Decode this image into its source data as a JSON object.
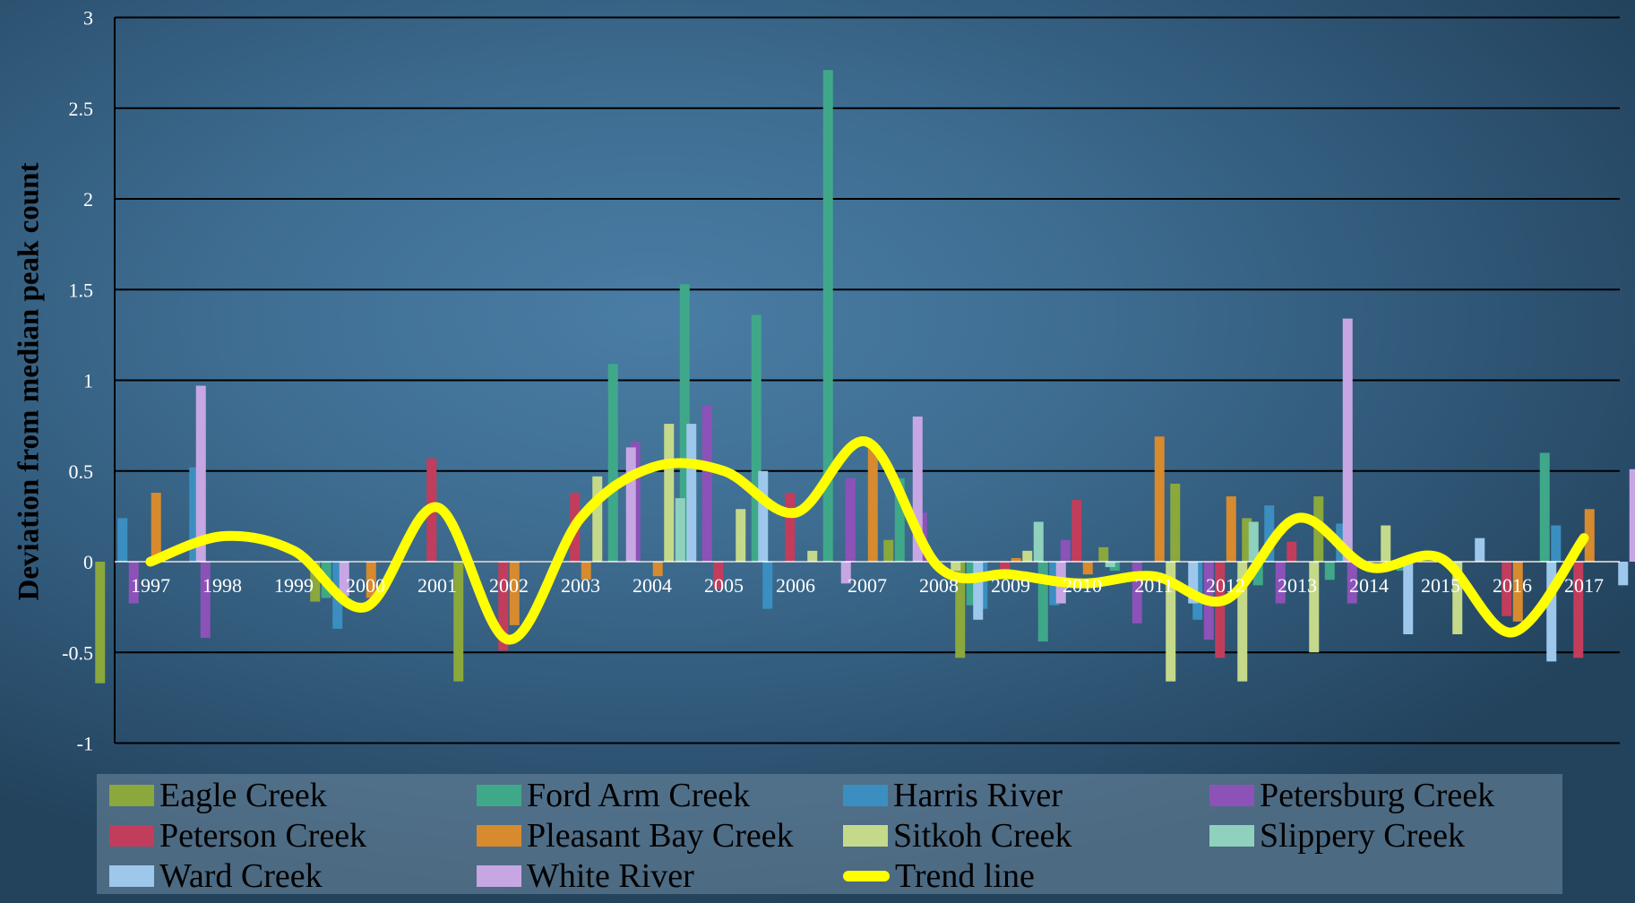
{
  "chart_data": {
    "type": "bar",
    "ylabel": "Deviation from median peak count",
    "xlabel": "",
    "ylim": [
      -1,
      3
    ],
    "yticks": [
      "3",
      "2.5",
      "2",
      "1.5",
      "1",
      "0.5",
      "0",
      "-0.5",
      "-1"
    ],
    "ytick_values": [
      3,
      2.5,
      2,
      1.5,
      1,
      0.5,
      0,
      -0.5,
      -1
    ],
    "grid": true,
    "legend_position": "bottom",
    "categories": [
      "1997",
      "1998",
      "1999",
      "2000",
      "2001",
      "2002",
      "2003",
      "2004",
      "2005",
      "2006",
      "2007",
      "2008",
      "2009",
      "2010",
      "2011",
      "2012",
      "2013",
      "2014",
      "2015",
      "2016",
      "2017"
    ],
    "series": [
      {
        "name": "Eagle Creek",
        "color": "#8aa83c",
        "values": [
          -0.67,
          null,
          null,
          -0.22,
          null,
          -0.66,
          null,
          null,
          null,
          null,
          null,
          0.12,
          -0.53,
          null,
          0.08,
          0.43,
          0.24,
          0.36,
          null,
          null,
          null
        ]
      },
      {
        "name": "Ford Arm Creek",
        "color": "#3fa889",
        "values": [
          null,
          null,
          null,
          -0.2,
          null,
          null,
          null,
          1.09,
          1.53,
          1.36,
          2.71,
          0.46,
          -0.24,
          -0.44,
          -0.05,
          null,
          -0.13,
          -0.1,
          -0.05,
          null,
          0.6
        ]
      },
      {
        "name": "Harris River",
        "color": "#3a8fc0",
        "values": [
          0.24,
          0.52,
          null,
          -0.37,
          null,
          null,
          null,
          null,
          null,
          -0.26,
          null,
          null,
          -0.26,
          -0.24,
          null,
          -0.32,
          0.31,
          0.21,
          null,
          null,
          0.2
        ]
      },
      {
        "name": "Petersburg Creek",
        "color": "#8c52b8",
        "values": [
          -0.23,
          -0.42,
          null,
          null,
          null,
          null,
          null,
          0.66,
          0.86,
          null,
          0.46,
          0.27,
          null,
          0.12,
          -0.34,
          -0.43,
          -0.23,
          -0.23,
          null,
          null,
          null
        ]
      },
      {
        "name": "Peterson Creek",
        "color": "#c23d5c",
        "values": [
          null,
          null,
          null,
          null,
          0.57,
          -0.49,
          0.38,
          null,
          -0.15,
          0.38,
          null,
          null,
          -0.05,
          0.34,
          null,
          -0.53,
          0.11,
          null,
          null,
          -0.3,
          -0.53
        ]
      },
      {
        "name": "Pleasant Bay Creek",
        "color": "#d78a2e",
        "values": [
          0.38,
          null,
          null,
          -0.2,
          null,
          -0.35,
          -0.1,
          -0.08,
          null,
          null,
          0.63,
          null,
          0.02,
          -0.07,
          0.69,
          0.36,
          null,
          null,
          null,
          -0.33,
          0.29
        ]
      },
      {
        "name": "Sitkoh Creek",
        "color": "#c5d98a",
        "values": [
          null,
          null,
          null,
          null,
          null,
          null,
          0.47,
          0.76,
          0.29,
          0.06,
          null,
          -0.05,
          0.06,
          null,
          -0.66,
          -0.66,
          -0.5,
          0.2,
          -0.4,
          null,
          null
        ]
      },
      {
        "name": "Slippery Creek",
        "color": "#8fd1bc",
        "values": [
          null,
          null,
          null,
          null,
          null,
          null,
          null,
          0.35,
          null,
          null,
          null,
          null,
          0.22,
          -0.03,
          null,
          0.22,
          null,
          null,
          null,
          null,
          null
        ]
      },
      {
        "name": "Ward Creek",
        "color": "#9ec7ec",
        "values": [
          null,
          null,
          null,
          null,
          null,
          null,
          null,
          0.76,
          0.5,
          null,
          null,
          -0.32,
          null,
          null,
          -0.23,
          null,
          null,
          -0.4,
          0.13,
          -0.55,
          -0.13
        ]
      },
      {
        "name": "White River",
        "color": "#c7a7e3",
        "values": [
          0.97,
          null,
          -0.19,
          null,
          null,
          null,
          0.63,
          null,
          null,
          -0.12,
          0.8,
          null,
          -0.23,
          null,
          null,
          null,
          1.34,
          null,
          null,
          null,
          0.51
        ]
      }
    ],
    "trend": {
      "name": "Trend line",
      "color": "#ffff00",
      "values": [
        0.0,
        0.14,
        0.06,
        -0.25,
        0.3,
        -0.43,
        0.24,
        0.52,
        0.5,
        0.27,
        0.66,
        -0.03,
        -0.07,
        -0.12,
        -0.08,
        -0.21,
        0.24,
        -0.03,
        0.02,
        -0.39,
        0.13
      ]
    }
  },
  "legend": {
    "items": [
      {
        "label": "Eagle Creek",
        "color": "#8aa83c",
        "kind": "bar",
        "icon": "eagle-creek-swatch"
      },
      {
        "label": "Ford Arm Creek",
        "color": "#3fa889",
        "kind": "bar",
        "icon": "ford-arm-creek-swatch"
      },
      {
        "label": "Harris River",
        "color": "#3a8fc0",
        "kind": "bar",
        "icon": "harris-river-swatch"
      },
      {
        "label": "Petersburg Creek",
        "color": "#8c52b8",
        "kind": "bar",
        "icon": "petersburg-creek-swatch"
      },
      {
        "label": "Peterson Creek",
        "color": "#c23d5c",
        "kind": "bar",
        "icon": "peterson-creek-swatch"
      },
      {
        "label": "Pleasant Bay Creek",
        "color": "#d78a2e",
        "kind": "bar",
        "icon": "pleasant-bay-creek-swatch"
      },
      {
        "label": "Sitkoh Creek",
        "color": "#c5d98a",
        "kind": "bar",
        "icon": "sitkoh-creek-swatch"
      },
      {
        "label": "Slippery Creek",
        "color": "#8fd1bc",
        "kind": "bar",
        "icon": "slippery-creek-swatch"
      },
      {
        "label": "Ward Creek",
        "color": "#9ec7ec",
        "kind": "bar",
        "icon": "ward-creek-swatch"
      },
      {
        "label": "White River",
        "color": "#c7a7e3",
        "kind": "bar",
        "icon": "white-river-swatch"
      },
      {
        "label": "Trend line",
        "color": "#ffff00",
        "kind": "line",
        "icon": "trend-line-swatch"
      }
    ]
  }
}
